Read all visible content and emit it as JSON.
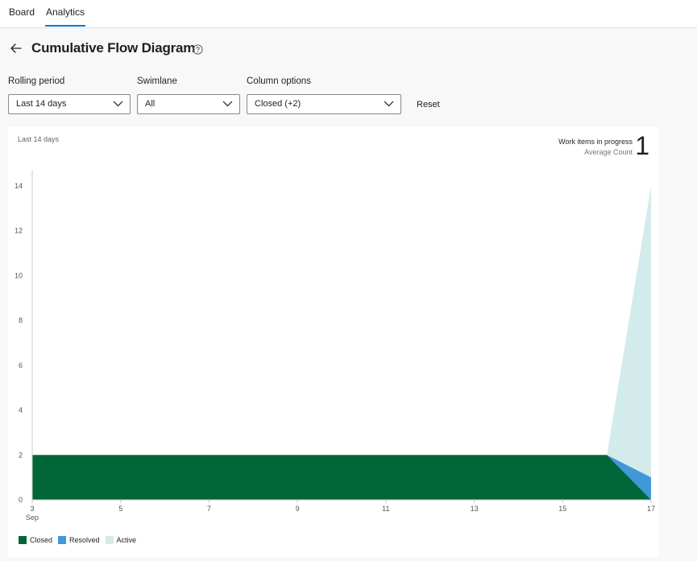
{
  "tabs": {
    "board": "Board",
    "analytics": "Analytics"
  },
  "header": {
    "title": "Cumulative Flow Diagram"
  },
  "filters": {
    "rolling_period": {
      "label": "Rolling period",
      "value": "Last 14 days"
    },
    "swimlane": {
      "label": "Swimlane",
      "value": "All"
    },
    "column_options": {
      "label": "Column options",
      "value": "Closed (+2)"
    },
    "reset_label": "Reset"
  },
  "colors": {
    "accent": "#0078d4",
    "closed": "#006638",
    "resolved": "#3f99d8",
    "active": "#d4ebec"
  },
  "chart_data": {
    "type": "area",
    "stacked": true,
    "period_label": "Last 14 days",
    "kpi": {
      "title": "Work items in progress",
      "subtitle": "Average Count",
      "value": "1"
    },
    "x": [
      3,
      4,
      5,
      6,
      7,
      8,
      9,
      10,
      11,
      12,
      13,
      14,
      15,
      16,
      17
    ],
    "x_ticks": [
      3,
      5,
      7,
      9,
      11,
      13,
      15,
      17
    ],
    "x_month_label": "Sep",
    "ylim": [
      0,
      14
    ],
    "y_ticks": [
      0,
      2,
      4,
      6,
      8,
      10,
      12,
      14
    ],
    "grid": false,
    "legend_position": "bottom-left",
    "series": [
      {
        "name": "Closed",
        "color": "#006638",
        "values": [
          2,
          2,
          2,
          2,
          2,
          2,
          2,
          2,
          2,
          2,
          2,
          2,
          2,
          2,
          0
        ]
      },
      {
        "name": "Resolved",
        "color": "#3f99d8",
        "values": [
          0,
          0,
          0,
          0,
          0,
          0,
          0,
          0,
          0,
          0,
          0,
          0,
          0,
          0,
          1
        ]
      },
      {
        "name": "Active",
        "color": "#d4ebec",
        "values": [
          0,
          0,
          0,
          0,
          0,
          0,
          0,
          0,
          0,
          0,
          0,
          0,
          0,
          0,
          13
        ]
      }
    ]
  }
}
